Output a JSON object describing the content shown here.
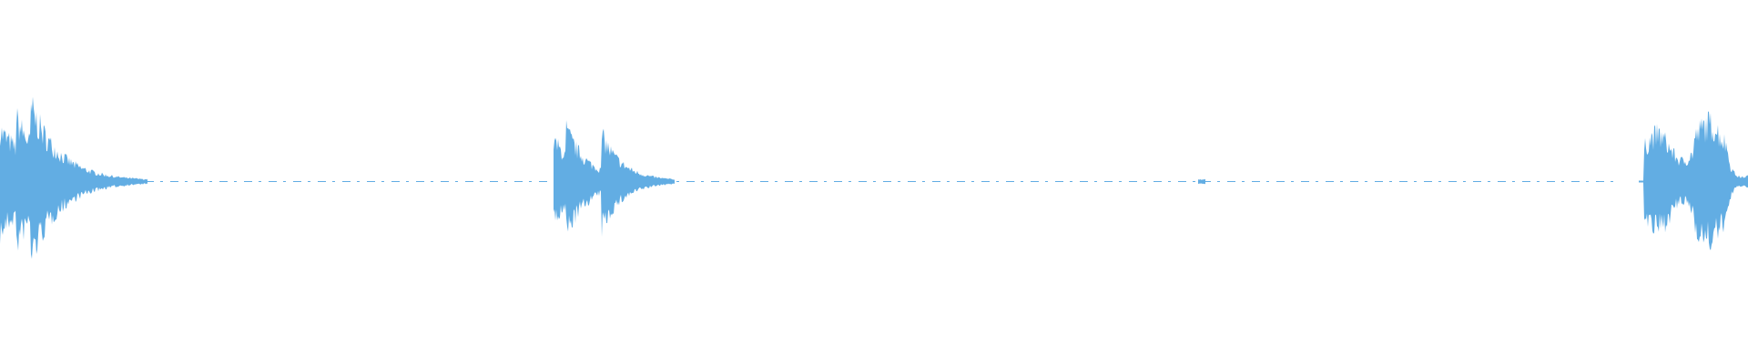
{
  "waveform": {
    "color": "#62ade3"
  }
}
